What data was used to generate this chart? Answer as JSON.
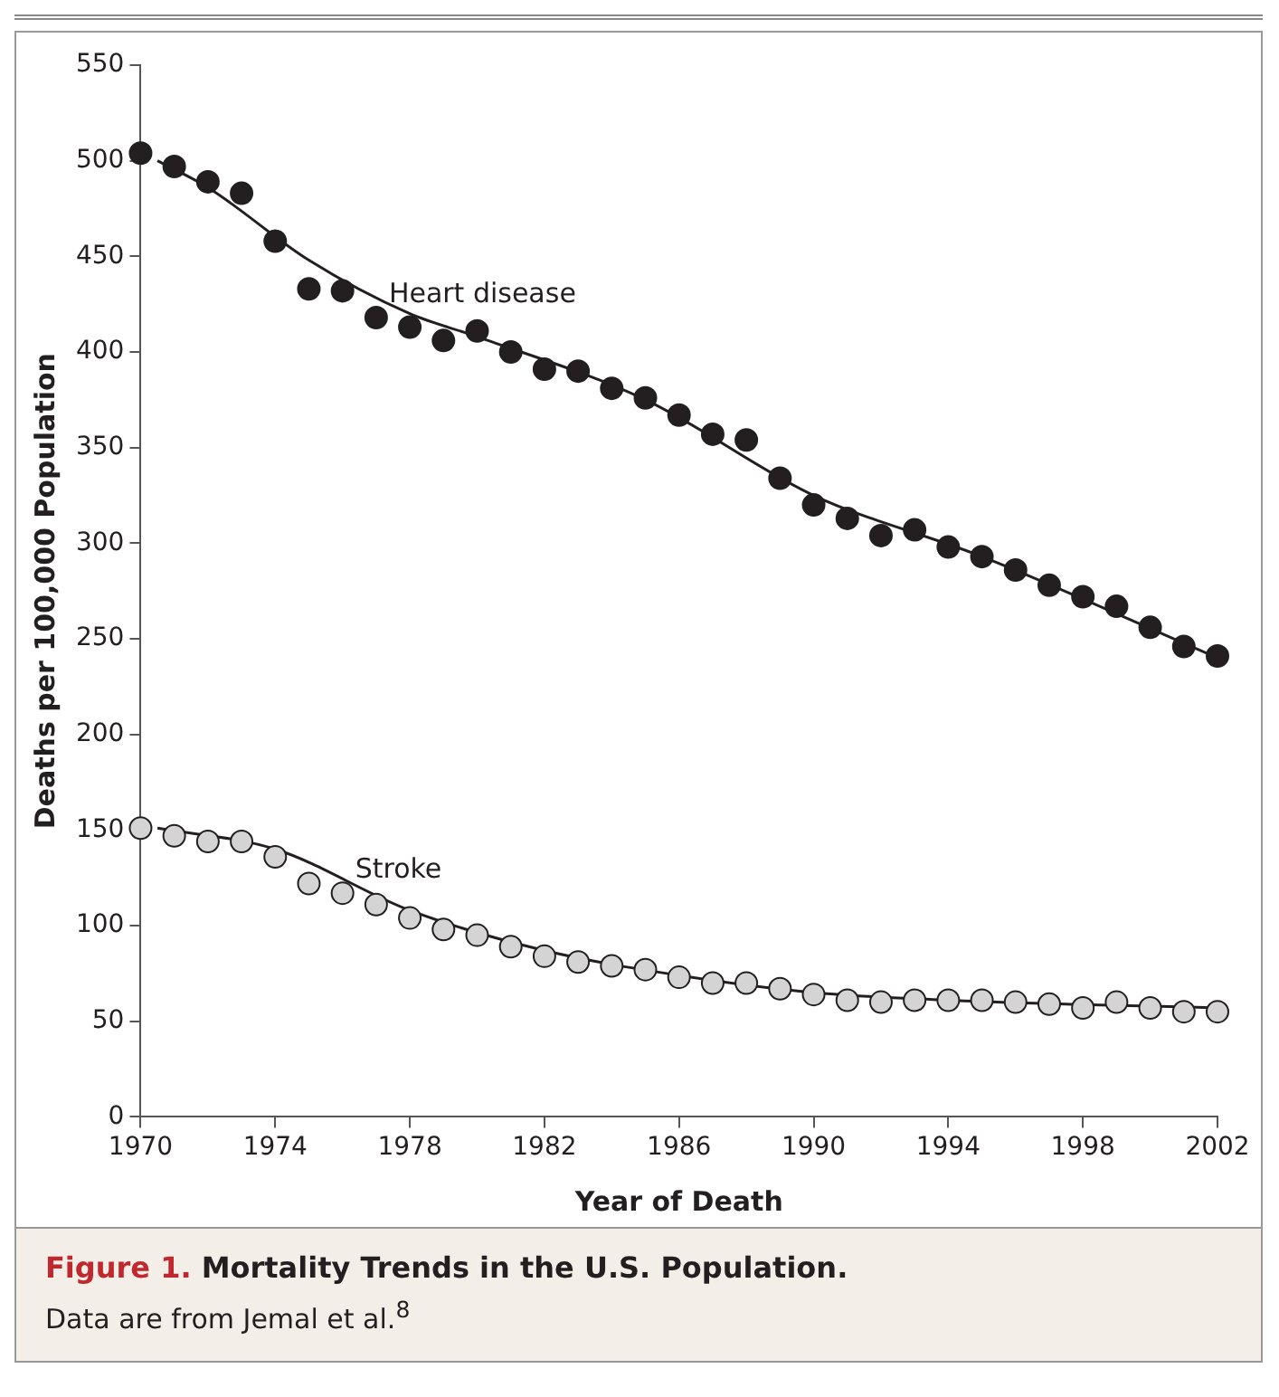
{
  "chart_data": {
    "type": "scatter",
    "title": "Figure 1. Mortality Trends in the U.S. Population.",
    "xlabel": "Year of Death",
    "ylabel": "Deaths per 100,000 Population",
    "annotations": [
      "Data are from Jemal et al.$^{8}$"
    ],
    "x": [
      1970,
      1971,
      1972,
      1973,
      1974,
      1975,
      1976,
      1977,
      1978,
      1979,
      1980,
      1981,
      1982,
      1983,
      1984,
      1985,
      1986,
      1987,
      1988,
      1989,
      1990,
      1991,
      1992,
      1993,
      1994,
      1995,
      1996,
      1997,
      1998,
      1999,
      2000,
      2001,
      2002
    ],
    "series": [
      {
        "name": "Heart disease",
        "color": "#231f20",
        "values": [
          504,
          497,
          489,
          483,
          458,
          433,
          432,
          418,
          413,
          406,
          411,
          400,
          391,
          390,
          381,
          376,
          367,
          357,
          354,
          334,
          320,
          313,
          304,
          307,
          298,
          293,
          286,
          278,
          272,
          267,
          256,
          246,
          241
        ]
      },
      {
        "name": "Stroke",
        "color": "#d4d4d4",
        "values": [
          151,
          147,
          144,
          144,
          136,
          122,
          117,
          111,
          104,
          98,
          95,
          89,
          84,
          81,
          79,
          77,
          73,
          70,
          70,
          67,
          64,
          61,
          60,
          61,
          61,
          61,
          60,
          59,
          57,
          60,
          57,
          55,
          55
        ]
      },
      {
        "type": "line",
        "marker": "none",
        "color": "#231f20",
        "x": [
          1970.5,
          1972,
          1975,
          1978,
          1980,
          1985,
          1990,
          1995,
          2002
        ],
        "values": [
          500,
          486,
          448,
          420,
          408,
          375,
          325,
          293,
          240
        ]
      },
      {
        "type": "line",
        "marker": "none",
        "color": "#231f20",
        "x": [
          1970.5,
          1974,
          1978,
          1982,
          1986,
          1990,
          1994,
          2002
        ],
        "values": [
          151,
          140,
          108,
          87,
          74,
          65,
          61,
          57
        ]
      }
    ],
    "xlim": [
      1970,
      2002
    ],
    "xticks": [
      1970,
      1974,
      1978,
      1982,
      1986,
      1990,
      1994,
      1998,
      2002
    ],
    "ylim": [
      0,
      550
    ],
    "yticks": [
      0,
      50,
      100,
      150,
      200,
      250,
      300,
      350,
      400,
      450,
      500,
      550
    ],
    "grid": false,
    "legend": false,
    "marker": "circle",
    "line_style": "solid"
  }
}
